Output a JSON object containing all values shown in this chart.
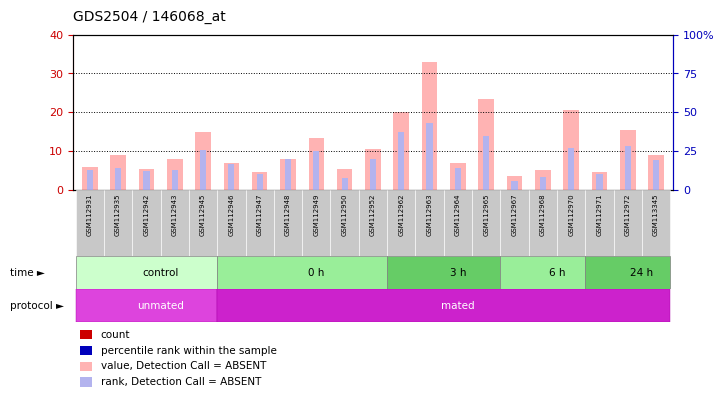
{
  "title": "GDS2504 / 146068_at",
  "samples": [
    "GSM112931",
    "GSM112935",
    "GSM112942",
    "GSM112943",
    "GSM112945",
    "GSM112946",
    "GSM112947",
    "GSM112948",
    "GSM112949",
    "GSM112950",
    "GSM112952",
    "GSM112962",
    "GSM112963",
    "GSM112964",
    "GSM112965",
    "GSM112967",
    "GSM112968",
    "GSM112970",
    "GSM112971",
    "GSM112972",
    "GSM113345"
  ],
  "absent_values": [
    6.0,
    9.0,
    5.5,
    8.0,
    15.0,
    7.0,
    4.5,
    8.0,
    13.5,
    5.5,
    10.5,
    20.0,
    33.0,
    7.0,
    23.5,
    3.5,
    5.0,
    20.5,
    4.5,
    15.5,
    9.0
  ],
  "absent_ranks_pct": [
    13.0,
    14.0,
    12.0,
    13.0,
    26.0,
    17.0,
    10.5,
    20.0,
    25.0,
    7.5,
    20.0,
    37.0,
    43.0,
    14.0,
    35.0,
    6.0,
    8.5,
    27.0,
    10.0,
    28.0,
    19.0
  ],
  "ylim_left": [
    0,
    40
  ],
  "ylim_right": [
    0,
    100
  ],
  "yticks_left": [
    0,
    10,
    20,
    30,
    40
  ],
  "yticks_right": [
    0,
    25,
    50,
    75,
    100
  ],
  "ytick_labels_right": [
    "0",
    "25",
    "50",
    "75",
    "100%"
  ],
  "bar_color_absent_value": "#ffb3b3",
  "bar_color_rank_absent": "#b3b3ee",
  "left_axis_color": "#cc0000",
  "right_axis_color": "#0000bb",
  "bg_color": "#ffffff",
  "groups_time": [
    {
      "label": "control",
      "start": 0,
      "end": 5,
      "color": "#ccffcc"
    },
    {
      "label": "0 h",
      "start": 5,
      "end": 11,
      "color": "#99ee99"
    },
    {
      "label": "3 h",
      "start": 11,
      "end": 15,
      "color": "#66cc66"
    },
    {
      "label": "6 h",
      "start": 15,
      "end": 18,
      "color": "#99ee99"
    },
    {
      "label": "24 h",
      "start": 18,
      "end": 21,
      "color": "#66cc66"
    }
  ],
  "groups_protocol": [
    {
      "label": "unmated",
      "start": 0,
      "end": 5,
      "color": "#dd44dd"
    },
    {
      "label": "mated",
      "start": 5,
      "end": 21,
      "color": "#cc22cc"
    }
  ],
  "legend_items": [
    {
      "color": "#cc0000",
      "label": "count"
    },
    {
      "color": "#0000bb",
      "label": "percentile rank within the sample"
    },
    {
      "color": "#ffb3b3",
      "label": "value, Detection Call = ABSENT"
    },
    {
      "color": "#b3b3ee",
      "label": "rank, Detection Call = ABSENT"
    }
  ]
}
